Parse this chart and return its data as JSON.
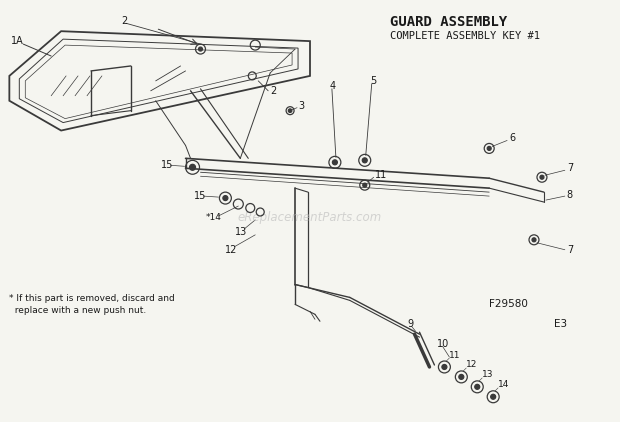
{
  "title": "GUARD ASSEMBLY",
  "subtitle": "COMPLETE ASSEMBLY KEY #1",
  "bg_color": "#f5f5f0",
  "text_color": "#1a1a1a",
  "dc": "#3a3a3a",
  "footnote_line1": "* If this part is removed, discard and",
  "footnote_line2": "  replace with a new push nut.",
  "watermark": "eReplacementParts.com",
  "fig_ref1": "F29580",
  "fig_ref2": "E3"
}
